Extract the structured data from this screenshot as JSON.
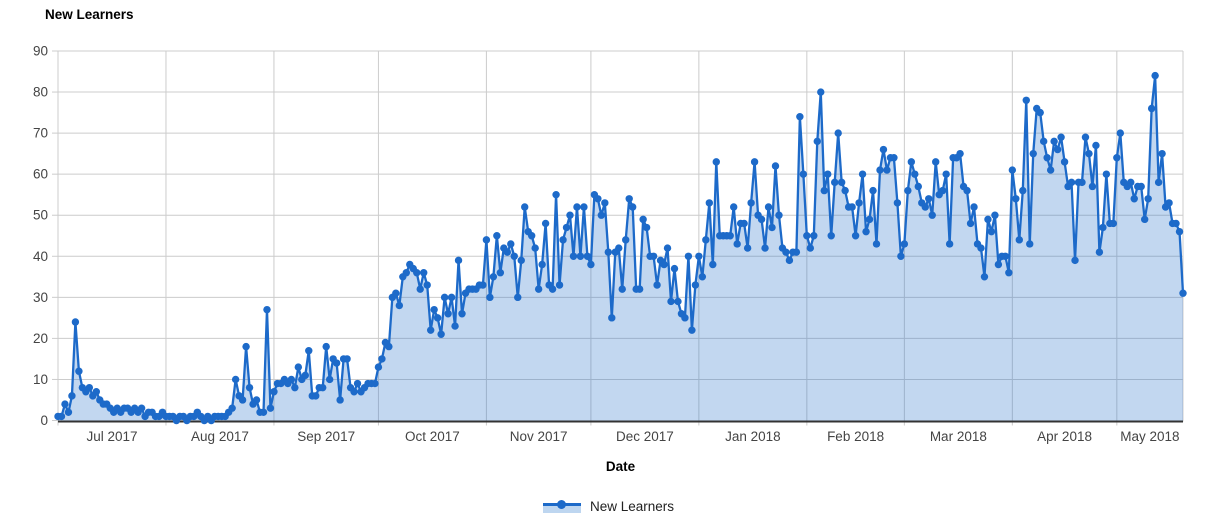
{
  "page": {
    "background": "#ffffff"
  },
  "chart_data": {
    "type": "area",
    "title": "New Learners",
    "xlabel": "Date",
    "ylabel": "",
    "grid": true,
    "ylim": [
      0,
      90
    ],
    "yticks": [
      0,
      10,
      20,
      30,
      40,
      50,
      60,
      70,
      80,
      90
    ],
    "legend": {
      "position": "bottom",
      "label": "New Learners"
    },
    "x_unit": "day",
    "x_start_label": "Jul 2017",
    "x_end_label": "May 2018",
    "months": [
      {
        "label": "Jul 2017",
        "days": 31
      },
      {
        "label": "Aug 2017",
        "days": 31
      },
      {
        "label": "Sep 2017",
        "days": 30
      },
      {
        "label": "Oct 2017",
        "days": 31
      },
      {
        "label": "Nov 2017",
        "days": 30
      },
      {
        "label": "Dec 2017",
        "days": 31
      },
      {
        "label": "Jan 2018",
        "days": 31
      },
      {
        "label": "Feb 2018",
        "days": 28
      },
      {
        "label": "Mar 2018",
        "days": 31
      },
      {
        "label": "Apr 2018",
        "days": 30
      },
      {
        "label": "May 2018",
        "days": 20
      }
    ],
    "series": [
      {
        "name": "New Learners",
        "values": [
          1,
          1,
          4,
          2,
          6,
          24,
          12,
          8,
          7,
          8,
          6,
          7,
          5,
          4,
          4,
          3,
          2,
          3,
          2,
          3,
          3,
          2,
          3,
          2,
          3,
          1,
          2,
          2,
          1,
          1,
          2,
          1,
          1,
          1,
          0,
          1,
          1,
          0,
          1,
          1,
          2,
          1,
          0,
          1,
          0,
          1,
          1,
          1,
          1,
          2,
          3,
          10,
          6,
          5,
          18,
          8,
          4,
          5,
          2,
          2,
          27,
          3,
          7,
          9,
          9,
          10,
          9,
          10,
          8,
          13,
          10,
          11,
          17,
          6,
          6,
          8,
          8,
          18,
          10,
          15,
          14,
          5,
          15,
          15,
          8,
          7,
          9,
          7,
          8,
          9,
          9,
          9,
          13,
          15,
          19,
          18,
          30,
          31,
          28,
          35,
          36,
          38,
          37,
          36,
          32,
          36,
          33,
          22,
          27,
          25,
          21,
          30,
          26,
          30,
          23,
          39,
          26,
          31,
          32,
          32,
          32,
          33,
          33,
          44,
          30,
          35,
          45,
          36,
          42,
          41,
          43,
          40,
          30,
          39,
          52,
          46,
          45,
          42,
          32,
          38,
          48,
          33,
          32,
          55,
          33,
          44,
          47,
          50,
          40,
          52,
          40,
          52,
          40,
          38,
          55,
          54,
          50,
          53,
          41,
          25,
          41,
          42,
          32,
          44,
          54,
          52,
          32,
          32,
          49,
          47,
          40,
          40,
          33,
          39,
          38,
          42,
          29,
          37,
          29,
          26,
          25,
          40,
          22,
          33,
          40,
          35,
          44,
          53,
          38,
          63,
          45,
          45,
          45,
          45,
          52,
          43,
          48,
          48,
          42,
          53,
          63,
          50,
          49,
          42,
          52,
          47,
          62,
          50,
          42,
          41,
          39,
          41,
          41,
          74,
          60,
          45,
          42,
          45,
          68,
          80,
          56,
          60,
          45,
          58,
          70,
          58,
          56,
          52,
          52,
          45,
          53,
          60,
          46,
          49,
          56,
          43,
          61,
          66,
          61,
          64,
          64,
          53,
          40,
          43,
          56,
          63,
          60,
          57,
          53,
          52,
          54,
          50,
          63,
          55,
          56,
          60,
          43,
          64,
          64,
          65,
          57,
          56,
          48,
          52,
          43,
          42,
          35,
          49,
          46,
          50,
          38,
          40,
          40,
          36,
          61,
          54,
          44,
          56,
          78,
          43,
          65,
          76,
          75,
          68,
          64,
          61,
          68,
          66,
          69,
          63,
          57,
          58,
          39,
          58,
          58,
          69,
          65,
          57,
          67,
          41,
          47,
          60,
          48,
          48,
          64,
          70,
          58,
          57,
          58,
          54,
          57,
          57,
          49,
          54,
          76,
          84,
          58,
          65,
          52,
          53,
          48,
          48,
          46,
          31
        ]
      }
    ],
    "colors": {
      "line": "#1d6ac9",
      "fill": "rgba(29,106,201,0.27)",
      "legend_fill": "#bed6f0",
      "grid": "#cccccc",
      "axis": "#333333",
      "tick_label": "#444444",
      "title": "#000000"
    }
  }
}
